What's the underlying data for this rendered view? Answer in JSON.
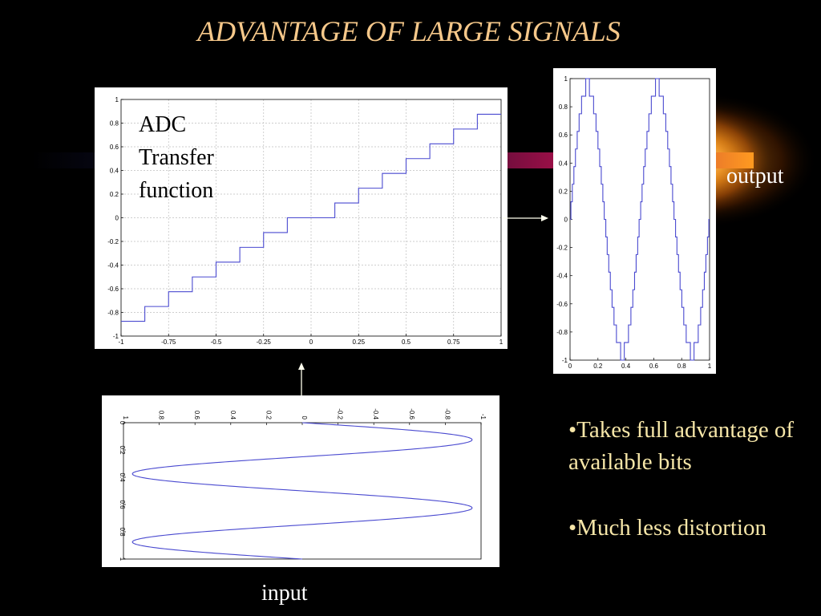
{
  "slide": {
    "title": "ADVANTAGE OF LARGE SIGNALS",
    "labels": {
      "transfer": [
        "ADC",
        "Transfer",
        "function"
      ],
      "output": "output",
      "input": "input"
    },
    "bullets": [
      "•Takes full advantage of available bits",
      "•Much less distortion"
    ],
    "colors": {
      "title": "#f6c88a",
      "bullets": "#f6e6a8",
      "curve": "#4a4ad0",
      "background": "#000000"
    }
  },
  "chart_data": [
    {
      "id": "transfer",
      "type": "line",
      "step": true,
      "xlim": [
        -1,
        1
      ],
      "ylim": [
        -1,
        1
      ],
      "xticks": [
        "-1",
        "-0.75",
        "-0.5",
        "-0.25",
        "0",
        "0.25",
        "0.5",
        "0.75",
        "1"
      ],
      "yticks": [
        "-1",
        "-0.8",
        "-0.6",
        "-0.4",
        "-0.2",
        "0",
        "0.2",
        "0.4",
        "0.6",
        "0.8",
        "1"
      ],
      "grid": true,
      "x": [
        -1,
        -0.875,
        -0.75,
        -0.625,
        -0.5,
        -0.375,
        -0.25,
        -0.125,
        0,
        0.125,
        0.25,
        0.375,
        0.5,
        0.625,
        0.75,
        0.875,
        1
      ],
      "values": [
        -0.875,
        -0.75,
        -0.625,
        -0.5,
        -0.375,
        -0.25,
        -0.125,
        0,
        0,
        0.125,
        0.25,
        0.375,
        0.5,
        0.625,
        0.75,
        0.875,
        0.875
      ]
    },
    {
      "id": "output",
      "type": "line",
      "step": true,
      "xlim": [
        0,
        1
      ],
      "ylim": [
        -1,
        1
      ],
      "xticks": [
        "0",
        "0.2",
        "0.4",
        "0.6",
        "0.8",
        "1"
      ],
      "yticks": [
        "-1",
        "-0.8",
        "-0.6",
        "-0.4",
        "-0.2",
        "0",
        "0.2",
        "0.4",
        "0.6",
        "0.8",
        "1"
      ],
      "grid": false,
      "function": "quantized sine, 2 periods, amplitude 0.95, step 0.125"
    },
    {
      "id": "input",
      "type": "line",
      "rotated": true,
      "xlim": [
        0,
        1
      ],
      "ylim": [
        -1,
        1
      ],
      "xticks": [
        "0",
        "0.2",
        "0.4",
        "0.6",
        "0.8",
        "1"
      ],
      "yticks": [
        "-1",
        "-0.8",
        "-0.6",
        "-0.4",
        "-0.2",
        "0",
        "0.2",
        "0.4",
        "0.6",
        "0.8",
        "1"
      ],
      "grid": false,
      "function": "sine, 2 periods, amplitude 0.95"
    }
  ]
}
